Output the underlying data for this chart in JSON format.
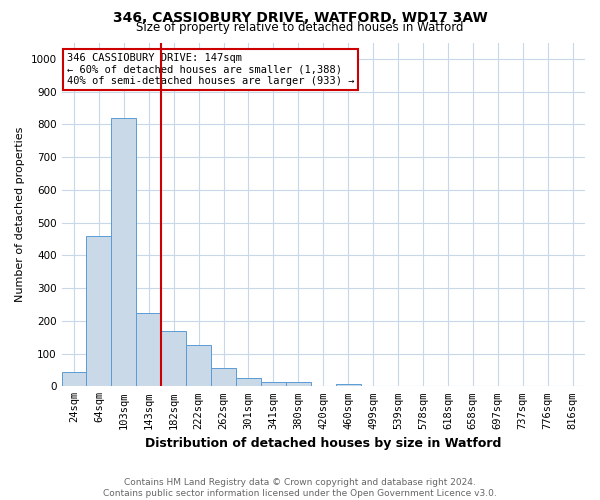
{
  "title": "346, CASSIOBURY DRIVE, WATFORD, WD17 3AW",
  "subtitle": "Size of property relative to detached houses in Watford",
  "xlabel": "Distribution of detached houses by size in Watford",
  "ylabel": "Number of detached properties",
  "footer_line1": "Contains HM Land Registry data © Crown copyright and database right 2024.",
  "footer_line2": "Contains public sector information licensed under the Open Government Licence v3.0.",
  "bins": [
    "24sqm",
    "64sqm",
    "103sqm",
    "143sqm",
    "182sqm",
    "222sqm",
    "262sqm",
    "301sqm",
    "341sqm",
    "380sqm",
    "420sqm",
    "460sqm",
    "499sqm",
    "539sqm",
    "578sqm",
    "618sqm",
    "658sqm",
    "697sqm",
    "737sqm",
    "776sqm",
    "816sqm"
  ],
  "values": [
    45,
    460,
    820,
    225,
    170,
    125,
    57,
    25,
    12,
    12,
    0,
    8,
    0,
    0,
    0,
    0,
    0,
    0,
    0,
    0,
    0
  ],
  "bar_color": "#c9d9e8",
  "bar_edge_color": "#5b9bd5",
  "highlight_line_color": "#cc0000",
  "annotation_box_text": "346 CASSIOBURY DRIVE: 147sqm\n← 60% of detached houses are smaller (1,388)\n40% of semi-detached houses are larger (933) →",
  "annotation_box_color": "#ffffff",
  "annotation_box_edge_color": "#cc0000",
  "ylim": [
    0,
    1050
  ],
  "yticks": [
    0,
    100,
    200,
    300,
    400,
    500,
    600,
    700,
    800,
    900,
    1000
  ],
  "background_color": "#ffffff",
  "grid_color": "#c8d8e8",
  "title_fontsize": 10,
  "subtitle_fontsize": 8.5,
  "ylabel_fontsize": 8,
  "xlabel_fontsize": 9,
  "tick_fontsize": 7.5,
  "footer_fontsize": 6.5,
  "annotation_fontsize": 7.5
}
